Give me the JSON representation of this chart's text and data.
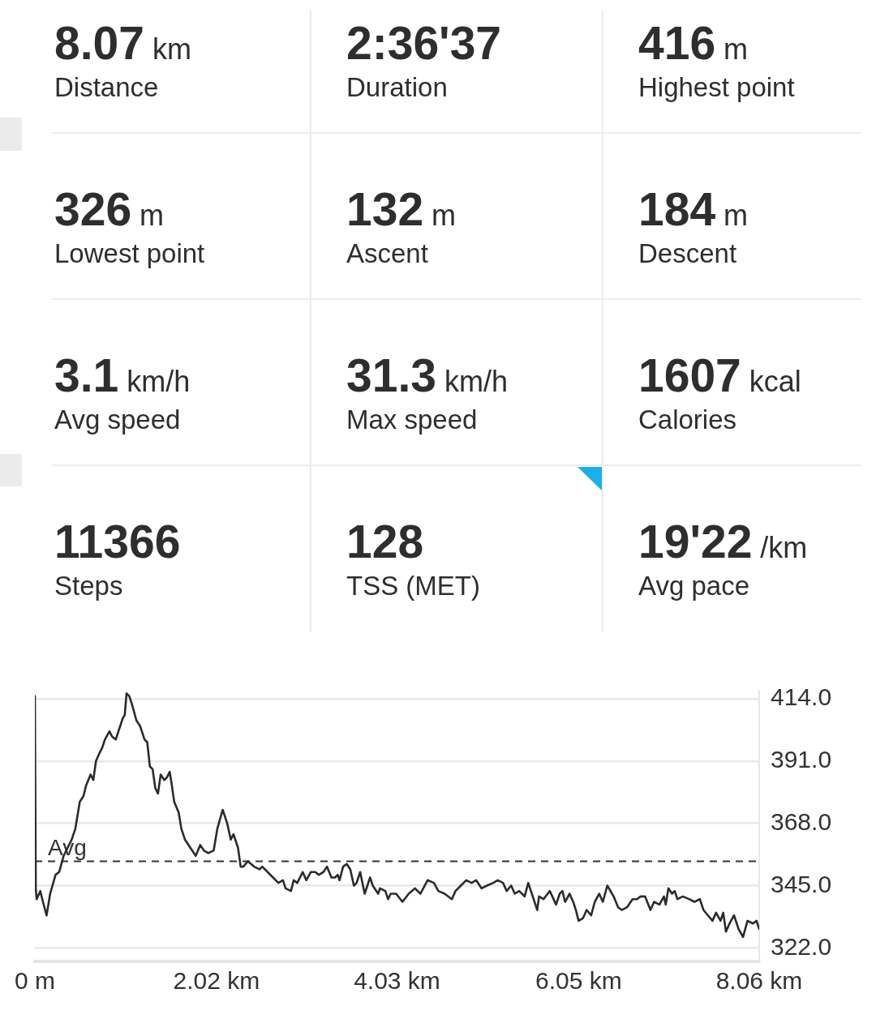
{
  "chart_data": [
    {
      "type": "other",
      "annotations": [
        "8.07 km",
        "Distance",
        "2:36'37",
        "Duration",
        "416 m",
        "Highest point",
        "326 m",
        "Lowest point",
        "132 m",
        "Ascent",
        "184 m",
        "Descent",
        "3.1 km/h",
        "Avg speed",
        "31.3 km/h",
        "Max speed",
        "1607 kcal",
        "Calories",
        "11366",
        "Steps",
        "128",
        "TSS (MET)",
        "19'22 /km",
        "Avg pace"
      ]
    },
    {
      "type": "line",
      "color": "#2b2b2b",
      "marker": "none",
      "grid": "y",
      "x": [
        0,
        0.01,
        0.02,
        0.06,
        0.09,
        0.13,
        0.17,
        0.23,
        0.27,
        0.32,
        0.41,
        0.45,
        0.5,
        0.54,
        0.57,
        0.62,
        0.65,
        0.68,
        0.72,
        0.75,
        0.78,
        0.83,
        0.86,
        0.9,
        0.93,
        0.98,
        1.0,
        1.02,
        1.05,
        1.08,
        1.13,
        1.17,
        1.22,
        1.25,
        1.28,
        1.31,
        1.34,
        1.37,
        1.4,
        1.44,
        1.47,
        1.5,
        1.52,
        1.55,
        1.6,
        1.63,
        1.67,
        1.73,
        1.79,
        1.84,
        1.88,
        1.93,
        1.99,
        2.03,
        2.09,
        2.14,
        2.18,
        2.21,
        2.26,
        2.29,
        2.32,
        2.37,
        2.44,
        2.5,
        2.53,
        2.59,
        2.65,
        2.71,
        2.76,
        2.79,
        2.85,
        2.88,
        2.92,
        2.98,
        3.02,
        3.07,
        3.12,
        3.16,
        3.21,
        3.25,
        3.3,
        3.34,
        3.37,
        3.39,
        3.43,
        3.47,
        3.51,
        3.55,
        3.58,
        3.62,
        3.67,
        3.7,
        3.73,
        3.76,
        3.82,
        3.84,
        3.9,
        3.93,
        3.96,
        4.02,
        4.09,
        4.16,
        4.23,
        4.29,
        4.37,
        4.44,
        4.49,
        4.56,
        4.64,
        4.68,
        4.74,
        4.8,
        4.86,
        4.91,
        4.97,
        5.03,
        5.1,
        5.15,
        5.21,
        5.25,
        5.3,
        5.34,
        5.39,
        5.45,
        5.49,
        5.54,
        5.59,
        5.61,
        5.66,
        5.73,
        5.8,
        5.84,
        5.87,
        5.9,
        5.95,
        5.99,
        6.02,
        6.05,
        6.1,
        6.14,
        6.19,
        6.23,
        6.28,
        6.32,
        6.37,
        6.44,
        6.49,
        6.53,
        6.59,
        6.65,
        6.7,
        6.74,
        6.79,
        6.85,
        6.89,
        6.95,
        7.0,
        7.02,
        7.05,
        7.09,
        7.12,
        7.15,
        7.21,
        7.28,
        7.34,
        7.4,
        7.44,
        7.49,
        7.54,
        7.58,
        7.63,
        7.66,
        7.69,
        7.73,
        7.78,
        7.83,
        7.88,
        7.93,
        7.99,
        8.03,
        8.06
      ],
      "values": [
        415,
        344,
        340,
        343,
        339,
        334,
        342,
        349,
        350,
        356,
        362,
        366,
        376,
        378,
        382,
        386,
        384,
        391,
        394,
        396,
        399,
        402,
        400,
        399,
        402,
        407,
        408,
        416,
        415,
        412,
        406,
        404,
        399,
        398,
        389,
        388,
        381,
        379,
        386,
        384,
        385,
        387,
        383,
        376,
        372,
        366,
        362,
        359,
        356,
        360,
        358,
        357,
        358,
        366,
        373,
        368,
        362,
        364,
        359,
        352,
        352,
        354,
        352,
        351,
        352,
        350,
        348,
        346,
        347,
        344,
        343,
        347,
        346,
        350,
        347,
        350,
        350,
        349,
        350,
        352,
        348,
        348,
        349,
        347,
        352,
        353,
        351,
        345,
        346,
        350,
        342,
        345,
        348,
        345,
        342,
        344,
        343,
        340,
        342,
        342,
        339,
        342,
        344,
        342,
        347,
        346,
        343,
        342,
        340,
        343,
        345,
        347,
        346,
        347,
        344,
        345,
        346,
        347,
        346,
        343,
        345,
        342,
        343,
        341,
        346,
        341,
        336,
        341,
        340,
        343,
        338,
        342,
        343,
        339,
        342,
        339,
        336,
        332,
        333,
        336,
        334,
        339,
        342,
        339,
        345,
        341,
        337,
        336,
        337,
        340,
        340,
        341,
        341,
        336,
        339,
        338,
        341,
        338,
        344,
        342,
        343,
        340,
        341,
        340,
        339,
        340,
        336,
        334,
        332,
        335,
        332,
        335,
        328,
        331,
        334,
        329,
        326,
        332,
        331,
        332,
        329
      ],
      "xlim": [
        0,
        8.06
      ],
      "xticks": [
        {
          "value": 0,
          "label": "0 m"
        },
        {
          "value": 2.02,
          "label": "2.02 km"
        },
        {
          "value": 4.03,
          "label": "4.03 km"
        },
        {
          "value": 6.05,
          "label": "6.05 km"
        },
        {
          "value": 8.06,
          "label": "8.06 km"
        }
      ],
      "ylim": [
        317,
        417
      ],
      "yticks": [
        {
          "value": 322,
          "label": "322.0"
        },
        {
          "value": 345,
          "label": "345.0"
        },
        {
          "value": 368,
          "label": "368.0"
        },
        {
          "value": 391,
          "label": "391.0"
        },
        {
          "value": 414,
          "label": "414.0"
        }
      ],
      "ref_lines": [
        {
          "axis": "y",
          "value": 354,
          "label": "Avg",
          "line_style": "dashed",
          "color": "#333333"
        }
      ]
    }
  ]
}
